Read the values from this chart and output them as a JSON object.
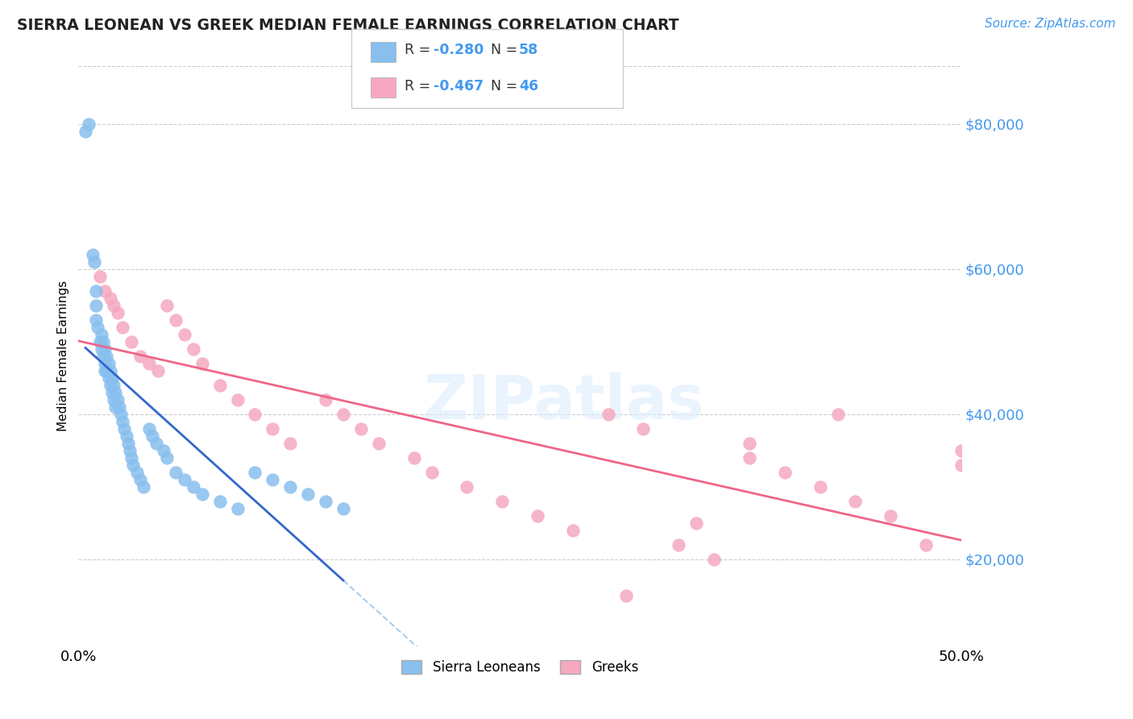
{
  "title": "SIERRA LEONEAN VS GREEK MEDIAN FEMALE EARNINGS CORRELATION CHART",
  "source": "Source: ZipAtlas.com",
  "ylabel": "Median Female Earnings",
  "y_ticks": [
    20000,
    40000,
    60000,
    80000
  ],
  "y_tick_labels": [
    "$20,000",
    "$40,000",
    "$60,000",
    "$80,000"
  ],
  "xlim": [
    0.0,
    0.5
  ],
  "ylim": [
    8000,
    88000
  ],
  "sierra_leone_color": "#88bfee",
  "greek_color": "#f5a8c0",
  "trendline_sierra_solid_color": "#3366cc",
  "trendline_dashed_color": "#aaccee",
  "trendline_greek_color": "#ee6688",
  "R_sierra": -0.28,
  "N_sierra": 58,
  "R_greek": -0.467,
  "N_greek": 46,
  "background_color": "#ffffff",
  "sierra_x": [
    0.004,
    0.006,
    0.008,
    0.009,
    0.01,
    0.01,
    0.01,
    0.011,
    0.012,
    0.013,
    0.013,
    0.014,
    0.014,
    0.015,
    0.015,
    0.015,
    0.016,
    0.016,
    0.017,
    0.017,
    0.018,
    0.018,
    0.019,
    0.019,
    0.02,
    0.02,
    0.021,
    0.021,
    0.022,
    0.023,
    0.024,
    0.025,
    0.026,
    0.027,
    0.028,
    0.029,
    0.03,
    0.031,
    0.033,
    0.035,
    0.037,
    0.04,
    0.042,
    0.044,
    0.048,
    0.05,
    0.055,
    0.06,
    0.065,
    0.07,
    0.08,
    0.09,
    0.1,
    0.11,
    0.12,
    0.13,
    0.14,
    0.15
  ],
  "sierra_y": [
    79000,
    80000,
    62000,
    61000,
    57000,
    55000,
    53000,
    52000,
    50000,
    49000,
    51000,
    48000,
    50000,
    47000,
    46000,
    49000,
    46000,
    48000,
    45000,
    47000,
    44000,
    46000,
    43000,
    45000,
    42000,
    44000,
    41000,
    43000,
    42000,
    41000,
    40000,
    39000,
    38000,
    37000,
    36000,
    35000,
    34000,
    33000,
    32000,
    31000,
    30000,
    38000,
    37000,
    36000,
    35000,
    34000,
    32000,
    31000,
    30000,
    29000,
    28000,
    27000,
    32000,
    31000,
    30000,
    29000,
    28000,
    27000
  ],
  "greek_x": [
    0.012,
    0.015,
    0.018,
    0.02,
    0.022,
    0.025,
    0.03,
    0.035,
    0.04,
    0.045,
    0.05,
    0.055,
    0.06,
    0.065,
    0.07,
    0.08,
    0.09,
    0.1,
    0.11,
    0.12,
    0.14,
    0.15,
    0.16,
    0.17,
    0.19,
    0.2,
    0.22,
    0.24,
    0.26,
    0.28,
    0.3,
    0.32,
    0.34,
    0.36,
    0.38,
    0.38,
    0.4,
    0.42,
    0.44,
    0.46,
    0.48,
    0.5,
    0.5,
    0.31,
    0.35,
    0.43
  ],
  "greek_y": [
    59000,
    57000,
    56000,
    55000,
    54000,
    52000,
    50000,
    48000,
    47000,
    46000,
    55000,
    53000,
    51000,
    49000,
    47000,
    44000,
    42000,
    40000,
    38000,
    36000,
    42000,
    40000,
    38000,
    36000,
    34000,
    32000,
    30000,
    28000,
    26000,
    24000,
    40000,
    38000,
    22000,
    20000,
    36000,
    34000,
    32000,
    30000,
    28000,
    26000,
    22000,
    35000,
    33000,
    15000,
    25000,
    40000
  ]
}
